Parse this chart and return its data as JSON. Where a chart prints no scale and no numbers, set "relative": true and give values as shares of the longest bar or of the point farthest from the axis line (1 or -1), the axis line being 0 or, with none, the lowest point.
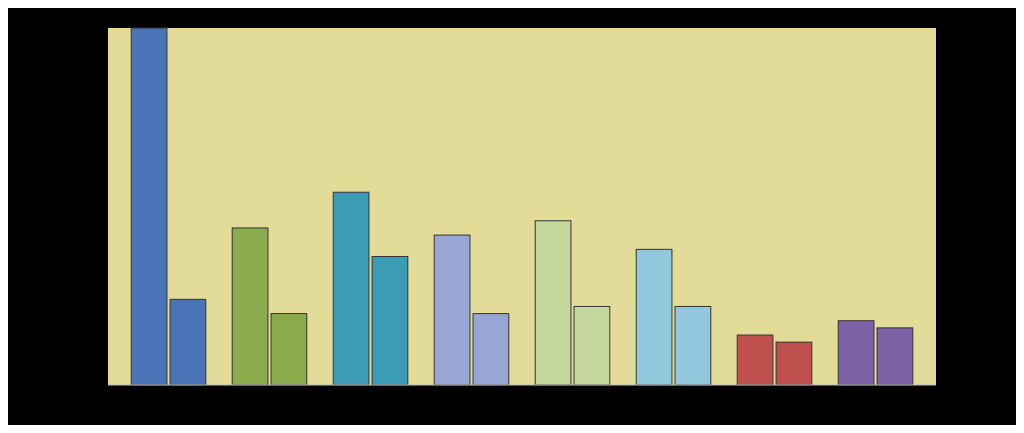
{
  "chart_data": {
    "type": "bar",
    "relative": true,
    "categories": [
      null,
      null,
      null,
      null,
      null,
      null,
      null,
      null
    ],
    "series": [
      {
        "colors": [
          "#4a74b8",
          "#8aab4c",
          "#3c9bb5",
          "#98a6d6",
          "#c4d89c",
          "#92c8de",
          "#c0504d",
          "#7e62a8"
        ],
        "values": [
          1,
          0.44,
          0.54,
          0.42,
          0.46,
          0.38,
          0.14,
          0.18
        ]
      },
      {
        "colors": [
          "#4a74b8",
          "#8aab4c",
          "#3c9bb5",
          "#98a6d6",
          "#c4d89c",
          "#92c8de",
          "#c0504d",
          "#7e62a8"
        ],
        "values": [
          0.24,
          0.2,
          0.36,
          0.2,
          0.22,
          0.22,
          0.12,
          0.16
        ]
      }
    ]
  }
}
